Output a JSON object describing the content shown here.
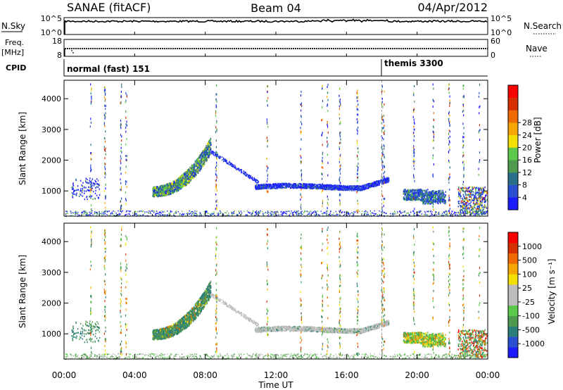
{
  "header": {
    "station": "SANAE (fitACF)",
    "beam": "Beam 04",
    "date": "04/Apr/2012"
  },
  "chart_data": [
    {
      "type": "line",
      "name": "nsky-panel",
      "left_label": "N.Sky",
      "right_label": "N.Search",
      "yticks_left": [
        "10^5",
        "10^0"
      ],
      "yticks_right": [
        "10^5",
        "10^0"
      ],
      "note": "noise sky (solid) and noise search (dotted) time series"
    },
    {
      "type": "line",
      "name": "freq-panel",
      "left_label_top": "Freq.",
      "left_label_unit": "[MHz]",
      "right_label": "Nave",
      "yticks_left": [
        "18",
        "8"
      ],
      "yticks_right": [
        "60",
        "0"
      ]
    },
    {
      "type": "table",
      "name": "cpid-panel",
      "label": "CPID",
      "segments": [
        {
          "start": "00:00",
          "text": "normal (fast) 151"
        },
        {
          "start": "18:00",
          "text": "themis 3300"
        }
      ]
    },
    {
      "type": "heatmap",
      "name": "power-panel",
      "ylabel": "Slant Range [km]",
      "yticks": [
        1000,
        2000,
        3000,
        4000
      ],
      "ylim": [
        180,
        4600
      ],
      "xlim": [
        0,
        24
      ],
      "colorbar": {
        "label": "Power [dB]",
        "ticks": [
          "4",
          "8",
          "12",
          "16",
          "20",
          "24",
          "28"
        ],
        "colors": [
          "#1c1cff",
          "#2a4fd0",
          "#2a6f8a",
          "#4f9a4f",
          "#5bc84b",
          "#f3df00",
          "#f6a600",
          "#ef6a00",
          "#d63000",
          "#ff0000"
        ]
      }
    },
    {
      "type": "heatmap",
      "name": "velocity-panel",
      "ylabel": "Slant Range [km]",
      "yticks": [
        1000,
        2000,
        3000,
        4000
      ],
      "ylim": [
        180,
        4600
      ],
      "xlim": [
        0,
        24
      ],
      "colorbar": {
        "label": "Velocity [m s⁻¹]",
        "ticks": [
          "1000",
          "500",
          "100",
          "25",
          "-25",
          "-100",
          "-500",
          "-1000"
        ],
        "colors": [
          "#1c1cff",
          "#2a4fd0",
          "#2a7f7a",
          "#4f9a4f",
          "#5bc84b",
          "#bdbdbd",
          "#bdbdbd",
          "#f3df00",
          "#f6a600",
          "#ef6a00",
          "#d63000",
          "#ff0000"
        ]
      }
    }
  ],
  "xaxis": {
    "ticks": [
      "00:00",
      "04:00",
      "08:00",
      "12:00",
      "16:00",
      "20:00",
      "00:00"
    ],
    "label": "Time UT"
  }
}
